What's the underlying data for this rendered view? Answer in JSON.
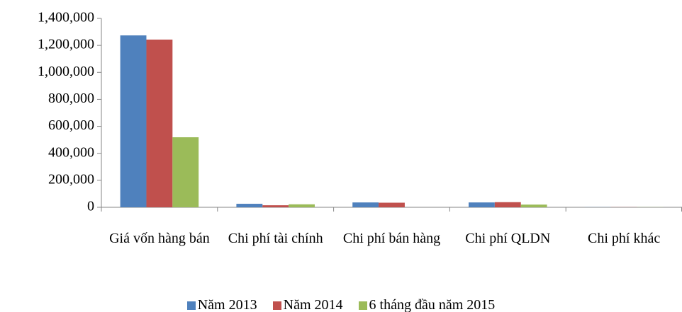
{
  "chart_data": {
    "type": "bar",
    "categories": [
      "Giá vốn hàng bán",
      "Chi phí tài chính",
      "Chi phí bán hàng",
      "Chi phí QLDN",
      "Chi phí khác"
    ],
    "series": [
      {
        "name": "Năm 2013",
        "color": "#4f81bd",
        "values": [
          1274000,
          26000,
          36000,
          36000,
          1000
        ]
      },
      {
        "name": "Năm 2014",
        "color": "#c0504d",
        "values": [
          1243000,
          15000,
          34000,
          38000,
          1000
        ]
      },
      {
        "name": "6 tháng đầu năm 2015",
        "color": "#9bbb59",
        "values": [
          519000,
          22000,
          0,
          20000,
          1000
        ]
      }
    ],
    "ylim": [
      0,
      1400000
    ],
    "yticks": [
      0,
      {
        "value": 200000,
        "label": "200,000"
      },
      {
        "value": 400000,
        "label": "400,000"
      },
      {
        "value": 600000,
        "label": "600,000"
      },
      {
        "value": 800000,
        "label": "800,000"
      },
      {
        "value": 1000000,
        "label": "1,000,000"
      },
      {
        "value": 1200000,
        "label": "1,200,000"
      },
      {
        "value": 1400000,
        "label": "1,400,000"
      }
    ],
    "grid": false,
    "legend": "bottom"
  }
}
